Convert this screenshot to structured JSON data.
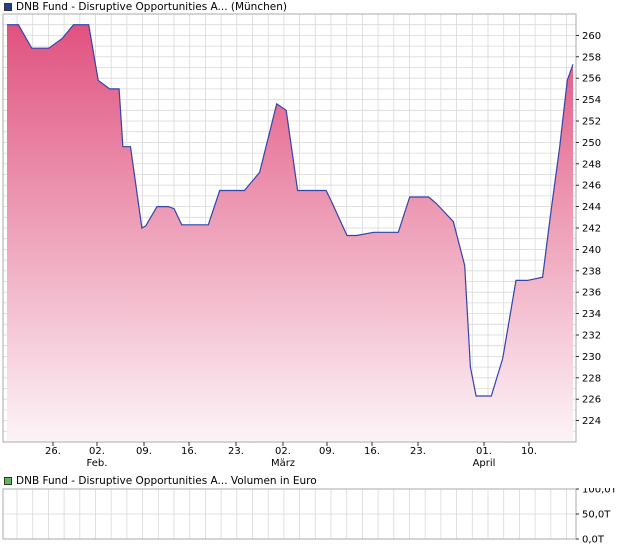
{
  "legend": {
    "price_label": "DNB Fund - Disruptive Opportunities A...  (München)",
    "price_color": "#1f3f8f",
    "volume_label": "DNB Fund - Disruptive Opportunities A...  Volumen in Euro",
    "volume_color": "#5cb85c"
  },
  "colors": {
    "line": "#3344aa",
    "area_top": "#e0527f",
    "area_bottom": "#fdf4f7",
    "grid": "#d9d9d9",
    "border": "#aaaaaa"
  },
  "chart_data": [
    {
      "type": "area",
      "ylim": [
        222,
        262
      ],
      "yticks": [
        224,
        226,
        228,
        230,
        232,
        234,
        236,
        238,
        240,
        242,
        244,
        246,
        248,
        250,
        252,
        254,
        256,
        258,
        260
      ],
      "ytick_labels": [
        "224",
        "226",
        "228",
        "230",
        "232",
        "234",
        "236",
        "238",
        "240",
        "242",
        "244",
        "246",
        "248",
        "250",
        "252",
        "254",
        "256",
        "258",
        "260"
      ],
      "xticks": [
        {
          "label": "26.",
          "sub": ""
        },
        {
          "label": "02.",
          "sub": "Feb."
        },
        {
          "label": "09.",
          "sub": ""
        },
        {
          "label": "16.",
          "sub": ""
        },
        {
          "label": "23.",
          "sub": ""
        },
        {
          "label": "02.",
          "sub": "März"
        },
        {
          "label": "09.",
          "sub": ""
        },
        {
          "label": "16.",
          "sub": ""
        },
        {
          "label": "23.",
          "sub": ""
        },
        {
          "label": "01.",
          "sub": "April"
        },
        {
          "label": "10.",
          "sub": ""
        }
      ],
      "series": [
        {
          "x": [
            0,
            0.6,
            1.3,
            2.2,
            2.9,
            3.5,
            4.3,
            4.8,
            5.4,
            5.9,
            6.1,
            6.5,
            7.1,
            7.3,
            7.9,
            8.2,
            8.5,
            8.8,
            9.2,
            9.9,
            10.6,
            11.2,
            11.5,
            11.9,
            12.5,
            13.3,
            14.2,
            14.7,
            15.3,
            15.8,
            16.2,
            16.8,
            17.1,
            17.9,
            18.4,
            19.3,
            19.6,
            20.0,
            20.3,
            20.6,
            21.2,
            21.9,
            22.2,
            22.6,
            23.5,
            24.1,
            24.4,
            24.7,
            25.1,
            25.5,
            26.1,
            26.8,
            27.4,
            28.2,
            28.6,
            29.1,
            29.5,
            29.8
          ],
          "y": [
            261.0,
            261.0,
            258.8,
            258.8,
            259.7,
            261.0,
            261.0,
            255.8,
            255.0,
            255.0,
            249.6,
            249.6,
            242.0,
            242.2,
            244.0,
            244.0,
            244.0,
            243.8,
            242.3,
            242.3,
            242.3,
            245.5,
            245.5,
            245.5,
            245.5,
            247.2,
            253.6,
            253.0,
            245.5,
            245.5,
            245.5,
            245.5,
            244.4,
            241.3,
            241.3,
            241.6,
            241.6,
            241.6,
            241.6,
            241.6,
            244.9,
            244.9,
            244.9,
            244.3,
            242.6,
            238.5,
            229.0,
            226.3,
            226.3,
            226.3,
            229.8,
            237.1,
            237.1,
            237.4,
            243.0,
            249.6,
            255.8,
            257.3
          ],
          "x_range": [
            0,
            29.8
          ]
        }
      ]
    },
    {
      "type": "bar",
      "ylim": [
        0,
        100
      ],
      "ytick_labels": [
        "100,0T",
        "50,0T",
        "0,0T"
      ],
      "values": []
    }
  ]
}
